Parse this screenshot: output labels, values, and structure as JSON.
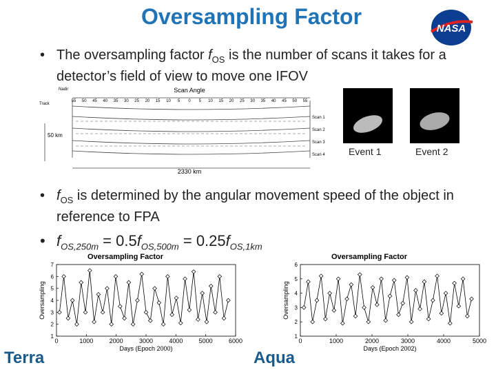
{
  "title": "Oversampling Factor",
  "logo": "NASA",
  "bullets": [
    {
      "parts": [
        "The oversampling factor ",
        "f",
        "OS",
        " is the number of scans it takes for a detector’s field of view to move one IFOV"
      ]
    },
    {
      "parts": [
        "f",
        "OS",
        " is determined by the angular movement speed of the object in reference to FPA"
      ]
    },
    {
      "parts": [
        "f",
        "OS,250m",
        " = 0.5",
        "f",
        "OS,500m",
        " = 0.25",
        "f",
        "OS,1km"
      ]
    }
  ],
  "diagram": {
    "nadir": "Nadir",
    "track": "Track",
    "scan_angle": "Scan Angle",
    "angles": [
      "55",
      "50",
      "45",
      "40",
      "35",
      "30",
      "25",
      "20",
      "15",
      "10",
      "5",
      "0",
      "5",
      "10",
      "15",
      "20",
      "25",
      "30",
      "35",
      "40",
      "45",
      "50",
      "55"
    ],
    "scans": [
      "Scan 1",
      "Scan 2",
      "Scan 3",
      "Scan 4"
    ],
    "height": "50 km",
    "width": "2330 km"
  },
  "events": [
    "Event 1",
    "Event 2"
  ],
  "chart_labels": [
    "Terra",
    "Aqua"
  ],
  "chart_data": [
    {
      "type": "line",
      "title": "Oversampling Factor",
      "x_label": "Days (Epoch 2000)",
      "y_label": "Oversampling",
      "xlim": [
        0,
        6000
      ],
      "xticks": [
        0,
        1000,
        2000,
        3000,
        4000,
        5000,
        6000
      ],
      "ylim": [
        1,
        7
      ],
      "yticks": [
        1,
        2,
        3,
        4,
        5,
        6,
        7
      ],
      "color": "#000000",
      "x": [
        100,
        245,
        390,
        535,
        680,
        825,
        970,
        1115,
        1260,
        1405,
        1550,
        1695,
        1840,
        1985,
        2130,
        2275,
        2420,
        2565,
        2710,
        2855,
        3000,
        3145,
        3290,
        3435,
        3580,
        3725,
        3870,
        4015,
        4160,
        4305,
        4450,
        4595,
        4740,
        4885,
        5030,
        5175,
        5320,
        5465,
        5610,
        5755
      ],
      "values": [
        3,
        6,
        2.5,
        4,
        2,
        5.5,
        3,
        6.5,
        2.2,
        4.5,
        3,
        5,
        2,
        6,
        3.5,
        2.5,
        5.5,
        2,
        4,
        6.2,
        3,
        2.3,
        5,
        3.8,
        2,
        6,
        2.8,
        4.2,
        2.1,
        5.8,
        3.2,
        6.4,
        2.4,
        4.6,
        2.2,
        5.2,
        3,
        6,
        2.5,
        4
      ]
    },
    {
      "type": "line",
      "title": "Oversampling Factor",
      "x_label": "Days (Epoch 2002)",
      "y_label": "Oversampling",
      "xlim": [
        0,
        5000
      ],
      "xticks": [
        0,
        1000,
        2000,
        3000,
        4000,
        5000
      ],
      "ylim": [
        1,
        6
      ],
      "yticks": [
        1,
        2,
        3,
        4,
        5,
        6
      ],
      "color": "#000000",
      "x": [
        100,
        220,
        340,
        460,
        580,
        700,
        820,
        940,
        1060,
        1180,
        1300,
        1420,
        1540,
        1660,
        1780,
        1900,
        2020,
        2140,
        2260,
        2380,
        2500,
        2620,
        2740,
        2860,
        2980,
        3100,
        3220,
        3340,
        3460,
        3580,
        3700,
        3820,
        3940,
        4060,
        4180,
        4300,
        4420,
        4540,
        4660,
        4780
      ],
      "values": [
        3,
        4.8,
        2,
        3.5,
        5.2,
        2.2,
        4,
        2.8,
        5,
        1.9,
        3.6,
        4.6,
        2.4,
        5.3,
        3,
        2,
        4.4,
        3.2,
        5,
        2.1,
        3.8,
        4.9,
        2.5,
        3.3,
        5.1,
        2,
        4.2,
        2.9,
        4.8,
        2.2,
        3.5,
        5.2,
        2.6,
        4,
        1.9,
        4.7,
        3.1,
        5,
        2.4,
        3.6
      ]
    }
  ]
}
